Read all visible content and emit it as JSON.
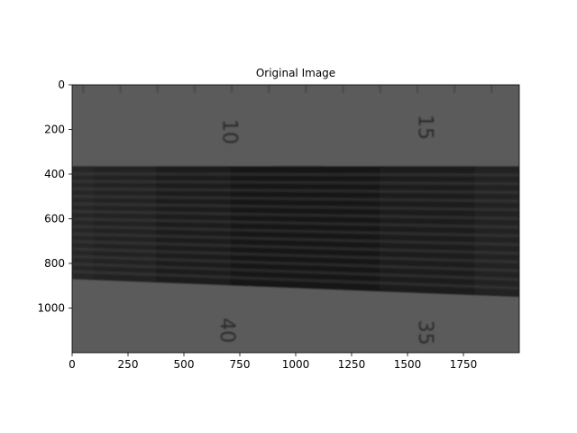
{
  "chart_data": {
    "type": "heatmap",
    "title": "Original Image",
    "xlabel": "",
    "ylabel": "",
    "x_range": [
      0,
      2000
    ],
    "y_range": [
      0,
      1200
    ],
    "y_inverted": true,
    "x_ticks": [
      0,
      250,
      500,
      750,
      1000,
      1250,
      1500,
      1750
    ],
    "y_ticks": [
      0,
      200,
      400,
      600,
      800,
      1000
    ],
    "colormap": "gray",
    "image_content": {
      "background_gray": "#5b5b5b",
      "band_color": "#1c1c1c",
      "band_top_left_y": 365,
      "band_top_right_y": 365,
      "band_bottom_left_y": 870,
      "band_bottom_right_y": 950,
      "fringe_count": 15,
      "ruler_numbers": [
        {
          "text": "10",
          "x": 700,
          "y": 210,
          "rotation": 90
        },
        {
          "text": "15",
          "x": 1575,
          "y": 190,
          "rotation": 90
        },
        {
          "text": "40",
          "x": 690,
          "y": 1100,
          "rotation": 90
        },
        {
          "text": "35",
          "x": 1575,
          "y": 1110,
          "rotation": 90
        }
      ],
      "vertical_edge_x": 1540
    }
  }
}
